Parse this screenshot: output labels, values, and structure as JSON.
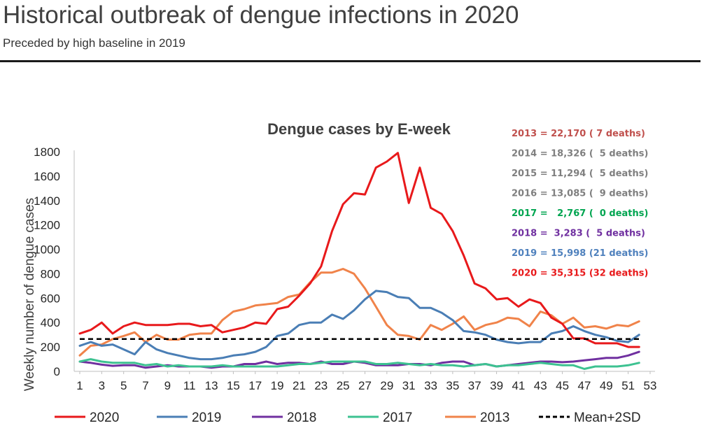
{
  "header": {
    "title": "Historical outbreak of dengue infections in 2020",
    "subtitle": "Preceded by high baseline in 2019"
  },
  "chart_data": {
    "type": "line",
    "title": "Dengue cases by E-week",
    "xlabel": "",
    "ylabel": "Weekly number of dengue cases",
    "xlim": [
      1,
      53
    ],
    "ylim": [
      0,
      1800
    ],
    "x_ticks": [
      1,
      3,
      5,
      7,
      9,
      11,
      13,
      15,
      17,
      19,
      21,
      23,
      25,
      27,
      29,
      31,
      33,
      35,
      37,
      39,
      41,
      43,
      45,
      47,
      49,
      51,
      53
    ],
    "y_ticks": [
      0,
      200,
      400,
      600,
      800,
      1000,
      1200,
      1400,
      1600,
      1800
    ],
    "y_tick_labels": [
      "0",
      "200",
      "400",
      "600",
      "800",
      "1000",
      "1200",
      "1400",
      "1600",
      "1800"
    ],
    "grid": false,
    "legend_position": "bottom",
    "series": [
      {
        "name": "2013",
        "color": "#f0834a",
        "dash": "",
        "values": [
          130,
          210,
          220,
          265,
          290,
          320,
          240,
          300,
          260,
          260,
          300,
          310,
          310,
          420,
          490,
          510,
          540,
          550,
          560,
          610,
          630,
          730,
          810,
          810,
          840,
          800,
          680,
          530,
          380,
          300,
          290,
          260,
          380,
          340,
          390,
          450,
          340,
          380,
          400,
          440,
          430,
          370,
          490,
          460,
          390,
          440,
          360,
          370,
          350,
          380,
          370,
          410
        ]
      },
      {
        "name": "2019",
        "color": "#4a7eb5",
        "dash": "",
        "values": [
          210,
          240,
          210,
          220,
          180,
          140,
          240,
          180,
          150,
          130,
          110,
          100,
          100,
          110,
          130,
          140,
          160,
          200,
          290,
          310,
          380,
          400,
          400,
          465,
          430,
          500,
          590,
          660,
          650,
          610,
          600,
          520,
          520,
          480,
          420,
          330,
          320,
          300,
          260,
          240,
          230,
          240,
          240,
          310,
          330,
          370,
          330,
          300,
          280,
          250,
          240,
          300
        ]
      },
      {
        "name": "2018",
        "color": "#7030a0",
        "dash": "",
        "values": [
          80,
          70,
          55,
          45,
          50,
          50,
          30,
          40,
          50,
          40,
          40,
          40,
          30,
          40,
          40,
          60,
          60,
          80,
          60,
          70,
          70,
          60,
          80,
          60,
          60,
          80,
          70,
          50,
          50,
          50,
          60,
          60,
          50,
          70,
          80,
          80,
          50,
          60,
          40,
          50,
          60,
          70,
          80,
          80,
          75,
          80,
          90,
          100,
          110,
          110,
          130,
          160
        ]
      },
      {
        "name": "2017",
        "color": "#3dc291",
        "dash": "",
        "values": [
          80,
          100,
          80,
          70,
          70,
          70,
          50,
          60,
          40,
          50,
          40,
          40,
          40,
          50,
          40,
          40,
          40,
          40,
          40,
          50,
          60,
          60,
          70,
          80,
          80,
          80,
          80,
          60,
          60,
          70,
          60,
          50,
          60,
          50,
          50,
          40,
          50,
          60,
          40,
          50,
          50,
          60,
          70,
          60,
          50,
          50,
          20,
          40,
          40,
          40,
          50,
          70
        ]
      },
      {
        "name": "2020",
        "color": "#e8191b",
        "dash": "",
        "values": [
          310,
          340,
          400,
          310,
          370,
          400,
          380,
          380,
          380,
          390,
          390,
          370,
          380,
          320,
          340,
          360,
          400,
          390,
          510,
          530,
          620,
          720,
          860,
          1150,
          1370,
          1460,
          1450,
          1670,
          1720,
          1790,
          1380,
          1670,
          1340,
          1290,
          1150,
          950,
          720,
          680,
          590,
          600,
          530,
          590,
          560,
          440,
          390,
          270,
          270,
          230,
          230,
          230,
          200,
          200
        ]
      },
      {
        "name": "Mean+2SD",
        "color": "#000000",
        "dash": "7,5",
        "values": [
          265,
          265,
          265,
          265,
          265,
          265,
          265,
          265,
          265,
          265,
          265,
          265,
          265,
          265,
          265,
          265,
          265,
          265,
          265,
          265,
          265,
          265,
          265,
          265,
          265,
          265,
          265,
          265,
          265,
          265,
          265,
          265,
          265,
          265,
          265,
          265,
          265,
          265,
          265,
          265,
          265,
          265,
          265,
          265,
          265,
          265,
          265,
          265,
          265,
          265,
          265,
          265
        ]
      }
    ],
    "legend_order": [
      "2020",
      "2019",
      "2018",
      "2017",
      "2013",
      "Mean+2SD"
    ],
    "annotations": [
      {
        "text": "2013 = 22,170 ( 7 deaths)",
        "color": "#c0504d"
      },
      {
        "text": "2014 = 18,326 (  5 deaths)",
        "color": "#7f7f7f"
      },
      {
        "text": "2015 = 11,294 (  5 deaths)",
        "color": "#7f7f7f"
      },
      {
        "text": "2016 = 13,085 (  9 deaths)",
        "color": "#7f7f7f"
      },
      {
        "text": "2017 =   2,767 (  0 deaths)",
        "color": "#00a550"
      },
      {
        "text": "2018 =  3,283 (  5 deaths)",
        "color": "#7030a0"
      },
      {
        "text": "2019 = 15,998 (21 deaths)",
        "color": "#4f81bd"
      },
      {
        "text": "2020 = 35,315 (32 deaths)",
        "color": "#e8191b"
      }
    ]
  }
}
